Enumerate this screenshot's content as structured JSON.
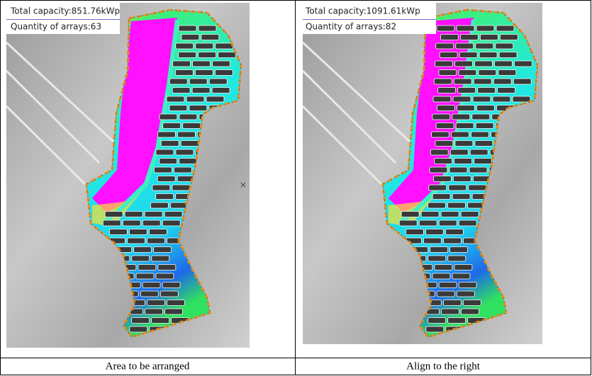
{
  "panels": [
    {
      "capacity_label": "Total capacity:851.76kWp",
      "arrays_label": "Quantity of arrays:63",
      "caption": "Area to be arranged"
    },
    {
      "capacity_label": "Total capacity:1091.61kWp",
      "arrays_label": "Quantity of arrays:82",
      "caption": "Align to the right"
    }
  ]
}
